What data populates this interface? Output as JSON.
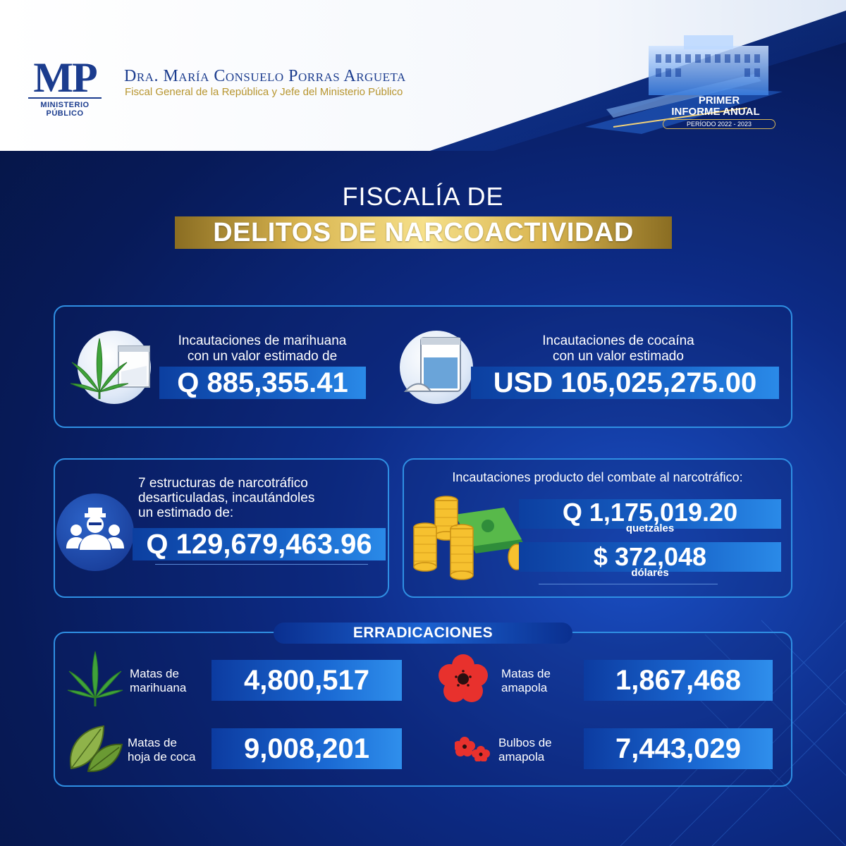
{
  "header": {
    "logo_letters": "MP",
    "logo_sub": "MINISTERIO PÚBLICO",
    "name": "Dra. María Consuelo Porras Argueta",
    "position": "Fiscal General de la República y Jefe del Ministerio Público",
    "report_line1": "PRIMER",
    "report_line2": "INFORME ANUAL",
    "report_period": "PERÍODO 2022 - 2023"
  },
  "titles": {
    "line1": "FISCALÍA DE",
    "line2": "DELITOS DE NARCOACTIVIDAD"
  },
  "seizures": {
    "marijuana": {
      "label_line1": "Incautaciones de marihuana",
      "label_line2": "con un valor estimado de",
      "value": "Q 885,355.41"
    },
    "cocaine": {
      "label_line1": "Incautaciones de cocaína",
      "label_line2": "con un valor estimado",
      "value": "USD 105,025,275.00"
    }
  },
  "structures": {
    "label_line1": "7 estructuras de narcotráfico",
    "label_line2": "desarticuladas, incautándoles",
    "label_line3": "un estimado de:",
    "value": "Q 129,679,463.96"
  },
  "combat": {
    "label": "Incautaciones producto del combate al narcotráfico:",
    "quetzales_value": "Q 1,175,019.20",
    "quetzales_unit": "quetzales",
    "dollars_value": "$ 372,048",
    "dollars_unit": "dólares"
  },
  "eradications": {
    "title": "ERRADICACIONES",
    "items": [
      {
        "line1": "Matas de",
        "line2": "marihuana",
        "value": "4,800,517",
        "icon": "marijuana-leaf-icon"
      },
      {
        "line1": "Matas de",
        "line2": "amapola",
        "value": "1,867,468",
        "icon": "poppy-flower-icon"
      },
      {
        "line1": "Matas de",
        "line2": "hoja de coca",
        "value": "9,008,201",
        "icon": "coca-leaf-icon"
      },
      {
        "line1": "Bulbos de",
        "line2": "amapola",
        "value": "7,443,029",
        "icon": "poppy-bulbs-icon"
      }
    ]
  },
  "colors": {
    "navy": "#06143f",
    "accent_blue": "#2f8fe3",
    "gold": "#d8b44f",
    "logo_blue": "#1b3c8e"
  }
}
